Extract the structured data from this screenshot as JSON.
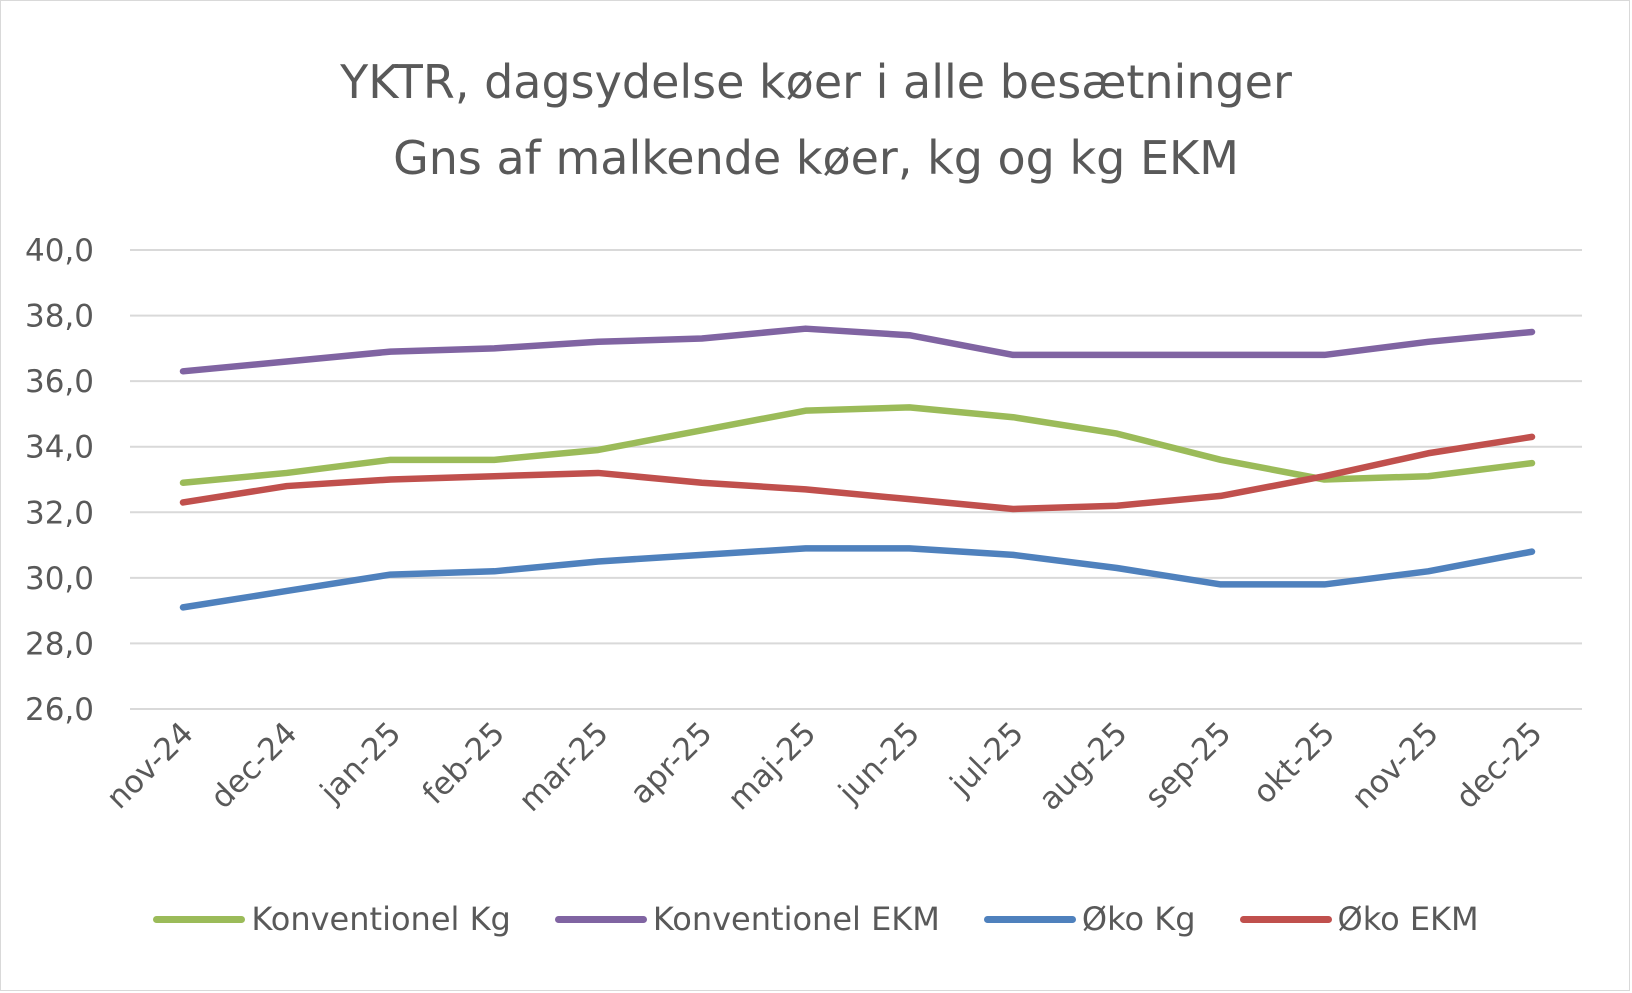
{
  "chart_data": {
    "type": "line",
    "title": [
      "YKTR, dagsydelse køer i alle besætninger",
      "Gns af malkende køer, kg og kg EKM"
    ],
    "categories": [
      "nov-24",
      "dec-24",
      "jan-25",
      "feb-25",
      "mar-25",
      "apr-25",
      "maj-25",
      "jun-25",
      "jul-25",
      "aug-25",
      "sep-25",
      "okt-25",
      "nov-25",
      "dec-25"
    ],
    "ylim": [
      26,
      40
    ],
    "yticks": [
      "26,0",
      "28,0",
      "30,0",
      "32,0",
      "34,0",
      "36,0",
      "38,0",
      "40,0"
    ],
    "grid": true,
    "legend_position": "bottom",
    "series": [
      {
        "name": "Konventionel Kg",
        "color": "#9BBB59",
        "values": [
          32.9,
          33.2,
          33.6,
          33.6,
          33.9,
          34.5,
          35.1,
          35.2,
          34.9,
          34.4,
          33.6,
          33.0,
          33.1,
          33.5
        ]
      },
      {
        "name": "Konventionel EKM",
        "color": "#8064A2",
        "values": [
          36.3,
          36.6,
          36.9,
          37.0,
          37.2,
          37.3,
          37.6,
          37.4,
          36.8,
          36.8,
          36.8,
          36.8,
          37.2,
          37.5
        ]
      },
      {
        "name": "Øko Kg",
        "color": "#4F81BD",
        "values": [
          29.1,
          29.6,
          30.1,
          30.2,
          30.5,
          30.7,
          30.9,
          30.9,
          30.7,
          30.3,
          29.8,
          29.8,
          30.2,
          30.8
        ]
      },
      {
        "name": "Øko EKM",
        "color": "#C0504D",
        "values": [
          32.3,
          32.8,
          33.0,
          33.1,
          33.2,
          32.9,
          32.7,
          32.4,
          32.1,
          32.2,
          32.5,
          33.1,
          33.8,
          34.3
        ]
      }
    ]
  }
}
